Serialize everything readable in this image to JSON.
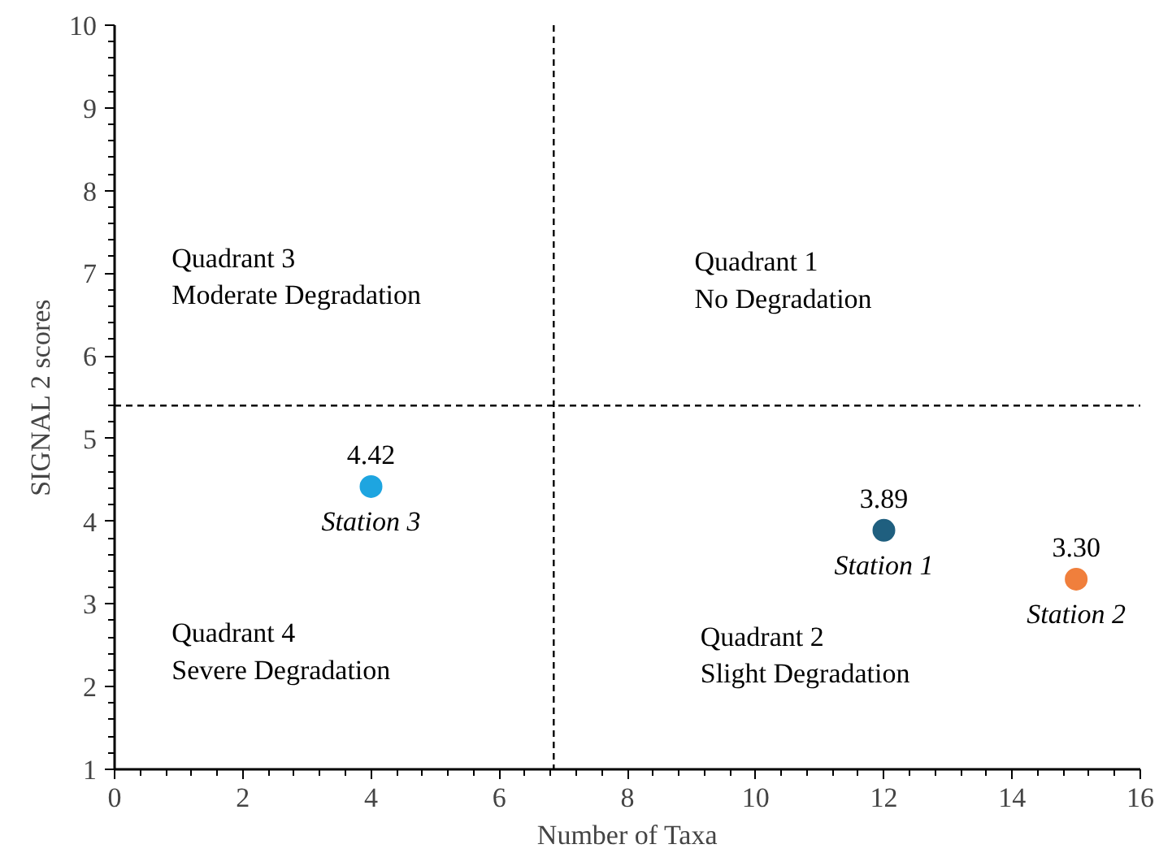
{
  "chart_data": {
    "type": "scatter",
    "xlabel": "Number of Taxa",
    "ylabel": "SIGNAL 2 scores",
    "series": [
      {
        "name": "Station 1",
        "color": "#1f5f7f",
        "x": [
          12
        ],
        "values": [
          3.89
        ],
        "value_labels": [
          "3.89"
        ]
      },
      {
        "name": "Station 2",
        "color": "#f07f3c",
        "x": [
          15
        ],
        "values": [
          3.3
        ],
        "value_labels": [
          "3.30"
        ]
      },
      {
        "name": "Station 3",
        "color": "#1ea5e0",
        "x": [
          4
        ],
        "values": [
          4.42
        ],
        "value_labels": [
          "4.42"
        ]
      }
    ],
    "marker": "circle",
    "grid": false,
    "xlim": [
      0,
      16
    ],
    "xticks": [
      0,
      2,
      4,
      6,
      8,
      10,
      12,
      14,
      16
    ],
    "ylim": [
      1,
      10
    ],
    "yticks": [
      1,
      2,
      3,
      4,
      5,
      6,
      7,
      8,
      9,
      10
    ],
    "ref_lines": [
      {
        "axis": "x",
        "value": 6.85,
        "color": "#000000",
        "line_style": "dashed"
      },
      {
        "axis": "y",
        "value": 5.4,
        "color": "#000000",
        "line_style": "dashed"
      }
    ],
    "annotations": [
      "Quadrant 1\nNo Degradation",
      "Quadrant 2\nSlight Degradation",
      "Quadrant 3\nModerate Degradation",
      "Quadrant 4\nSevere Degradation"
    ]
  }
}
